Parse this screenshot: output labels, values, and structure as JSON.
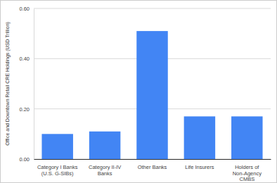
{
  "chart_data": {
    "type": "bar",
    "y_label": "Office and Downtown Retail CRE Holdings (USD Trillion)",
    "categories": [
      "Category I Banks (U.S. G-SIBs)",
      "Category II-IV Banks",
      "Other Banks",
      "Life Insurers",
      "Holders of Non-Agency CMBS"
    ],
    "values": [
      0.1,
      0.11,
      0.51,
      0.17,
      0.17
    ],
    "color": "#4285f4",
    "ylim": [
      0,
      0.6
    ],
    "yticks": [
      {
        "value": 0,
        "label": "0.00"
      },
      {
        "value": 0.2,
        "label": "0.20"
      },
      {
        "value": 0.4,
        "label": "0.40"
      },
      {
        "value": 0.6,
        "label": "0.60"
      }
    ],
    "grid": true
  }
}
